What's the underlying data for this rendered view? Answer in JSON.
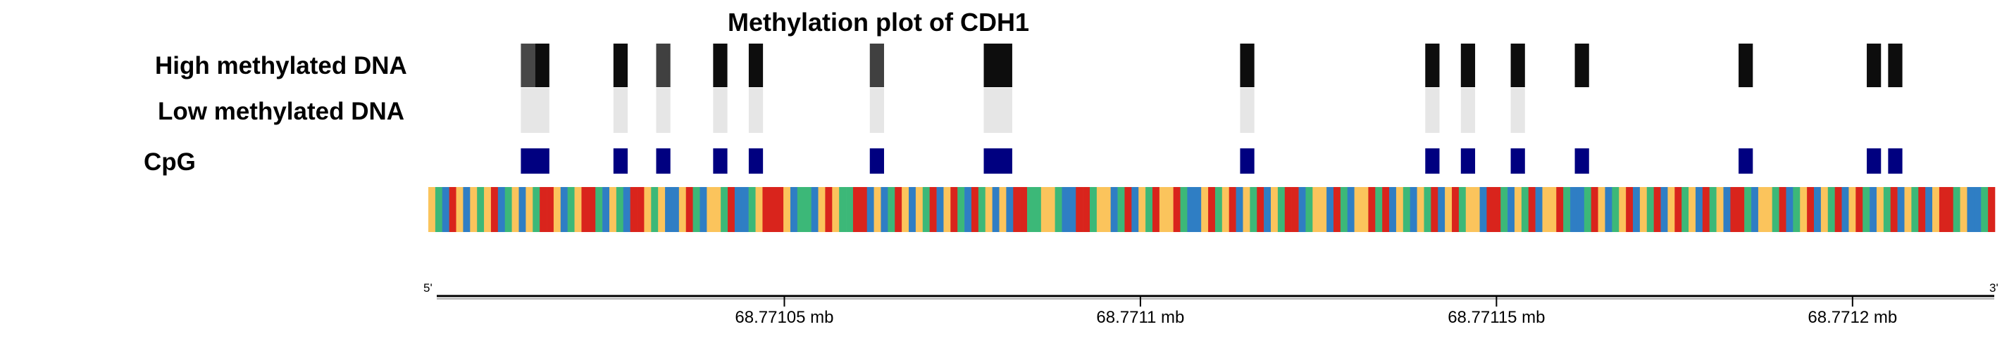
{
  "chart_data": {
    "type": "heatmap",
    "title": "Methylation plot of CDH1",
    "row_labels": {
      "high": "High methylated DNA",
      "low": "Low methylated DNA",
      "cpg": "CpG"
    },
    "axis": {
      "unit": "mb",
      "ticks": [
        {
          "value": 68.77105,
          "label": "68.77105 mb"
        },
        {
          "value": 68.7711,
          "label": "68.7711 mb"
        },
        {
          "value": 68.77115,
          "label": "68.77115 mb"
        },
        {
          "value": 68.7712,
          "label": "68.7712 mb"
        }
      ],
      "five_prime": "5'",
      "three_prime": "3'"
    },
    "cpg_sites": [
      {
        "start": 68.771013,
        "end": 68.771017,
        "high": [
          0.72,
          0.95
        ],
        "low": 0.1
      },
      {
        "start": 68.771026,
        "end": 68.771028,
        "high": 0.95,
        "low": 0.1
      },
      {
        "start": 68.771032,
        "end": 68.771034,
        "high": 0.75,
        "low": 0.1
      },
      {
        "start": 68.77104,
        "end": 68.771042,
        "high": 0.95,
        "low": 0.1
      },
      {
        "start": 68.771045,
        "end": 68.771047,
        "high": 0.95,
        "low": 0.1
      },
      {
        "start": 68.771062,
        "end": 68.771064,
        "high": 0.75,
        "low": 0.1
      },
      {
        "start": 68.771078,
        "end": 68.771082,
        "high": 0.95,
        "low": 0.1
      },
      {
        "start": 68.771114,
        "end": 68.771116,
        "high": 0.95,
        "low": 0.1
      },
      {
        "start": 68.77114,
        "end": 68.771142,
        "high": 0.95,
        "low": 0.1
      },
      {
        "start": 68.771145,
        "end": 68.771147,
        "high": 0.95,
        "low": 0.1
      },
      {
        "start": 68.771152,
        "end": 68.771154,
        "high": 0.95,
        "low": 0.1
      },
      {
        "start": 68.771161,
        "end": 68.771163,
        "high": 0.95,
        "low": null
      },
      {
        "start": 68.771184,
        "end": 68.771186,
        "high": 0.95,
        "low": null
      },
      {
        "start": 68.771202,
        "end": 68.771204,
        "high": 0.95,
        "low": null
      },
      {
        "start": 68.771205,
        "end": 68.771207,
        "high": 0.95,
        "low": null
      }
    ],
    "sequence": "GACTGCGAGTCAGCGATTGCAGTTACGACTTGAGCCGTACGGATCCAGTTTGCAACGTGAATTCGCATGCGATCGTACTAGCGCTTAAGGACCTTAGGCATCGATGGTACCGTAGTCGATCGATTCAGGCTACGGTATCGACGATCGTAGGCTTACGATCGGTACCATGCAGTCGATCGTAGCTAGCTTACGGATCAGTCGATCGTACGATCGATCGTTAGCCAT",
    "sequence_range": [
      68.771,
      68.77122
    ],
    "nucleotide_colors": {
      "A": "#3cb878",
      "C": "#2f7ec4",
      "G": "#fbc45c",
      "T": "#d9241c"
    },
    "cpg_color": "#000080",
    "low_color": "#e6e6e6",
    "x_range": [
      68.771,
      68.77122
    ],
    "legend": "none"
  }
}
